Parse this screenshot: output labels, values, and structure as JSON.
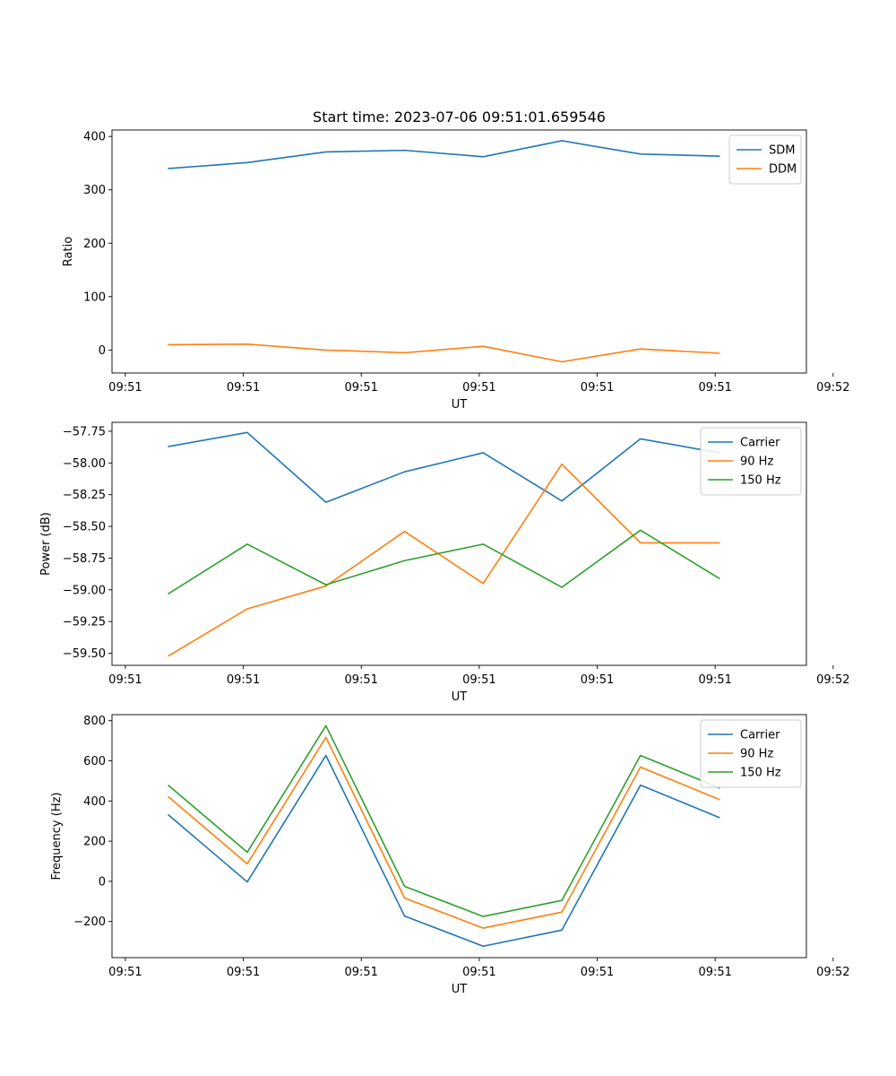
{
  "figure": {
    "title": "Start time: 2023-07-06 09:51:01.659546"
  },
  "chart_data": [
    {
      "type": "line",
      "title": "Start time: 2023-07-06 09:51:01.659546",
      "xlabel": "UT",
      "ylabel": "Ratio",
      "x": [
        1,
        2,
        3,
        4,
        5,
        6,
        7,
        8
      ],
      "xlim": [
        0.28,
        9.11
      ],
      "ylim": [
        -43,
        412
      ],
      "xticks": [
        0.45,
        1.95,
        3.45,
        4.95,
        6.45,
        7.95,
        9.45
      ],
      "xtick_labels": [
        "09:51",
        "09:51",
        "09:51",
        "09:51",
        "09:51",
        "09:51",
        "09:52"
      ],
      "yticks": [
        0,
        100,
        200,
        300,
        400
      ],
      "ytick_labels": [
        "0",
        "100",
        "200",
        "300",
        "400"
      ],
      "legend_position": "top-right",
      "series": [
        {
          "name": "SDM",
          "color": "#1f77b4",
          "values": [
            340,
            351,
            371,
            374,
            362,
            392,
            367,
            363
          ]
        },
        {
          "name": "DDM",
          "color": "#ff7f0e",
          "values": [
            10,
            11,
            0,
            -5,
            7,
            -22,
            2,
            -6
          ]
        }
      ]
    },
    {
      "type": "line",
      "title": "",
      "xlabel": "UT",
      "ylabel": "Power (dB)",
      "x": [
        1,
        2,
        3,
        4,
        5,
        6,
        7,
        8
      ],
      "xlim": [
        0.28,
        9.11
      ],
      "ylim": [
        -59.595,
        -57.68
      ],
      "xticks": [
        0.45,
        1.95,
        3.45,
        4.95,
        6.45,
        7.95,
        9.45
      ],
      "xtick_labels": [
        "09:51",
        "09:51",
        "09:51",
        "09:51",
        "09:51",
        "09:51",
        "09:52"
      ],
      "yticks": [
        -57.75,
        -58.0,
        -58.25,
        -58.5,
        -58.75,
        -59.0,
        -59.25,
        -59.5
      ],
      "ytick_labels": [
        "−57.75",
        "−58.00",
        "−58.25",
        "−58.50",
        "−58.75",
        "−59.00",
        "−59.25",
        "−59.50"
      ],
      "legend_position": "top-right",
      "series": [
        {
          "name": "Carrier",
          "color": "#1f77b4",
          "values": [
            -57.87,
            -57.76,
            -58.31,
            -58.07,
            -57.92,
            -58.3,
            -57.81,
            -57.92
          ]
        },
        {
          "name": "90 Hz",
          "color": "#ff7f0e",
          "values": [
            -59.52,
            -59.15,
            -58.97,
            -58.54,
            -58.95,
            -58.01,
            -58.63,
            -58.63
          ]
        },
        {
          "name": "150 Hz",
          "color": "#2ca02c",
          "values": [
            -59.03,
            -58.64,
            -58.96,
            -58.77,
            -58.64,
            -58.98,
            -58.53,
            -58.91
          ]
        }
      ]
    },
    {
      "type": "line",
      "title": "",
      "xlabel": "UT",
      "ylabel": "Frequency (Hz)",
      "x": [
        1,
        2,
        3,
        4,
        5,
        6,
        7,
        8
      ],
      "xlim": [
        0.28,
        9.11
      ],
      "ylim": [
        -380,
        830
      ],
      "xticks": [
        0.45,
        1.95,
        3.45,
        4.95,
        6.45,
        7.95,
        9.45
      ],
      "xtick_labels": [
        "09:51",
        "09:51",
        "09:51",
        "09:51",
        "09:51",
        "09:51",
        "09:52"
      ],
      "yticks": [
        -200,
        0,
        200,
        400,
        600,
        800
      ],
      "ytick_labels": [
        "−200",
        "0",
        "200",
        "400",
        "600",
        "800"
      ],
      "legend_position": "top-right",
      "series": [
        {
          "name": "Carrier",
          "color": "#1f77b4",
          "values": [
            330,
            -3,
            627,
            -173,
            -323,
            -243,
            479,
            318
          ]
        },
        {
          "name": "90 Hz",
          "color": "#ff7f0e",
          "values": [
            420,
            87,
            717,
            -83,
            -233,
            -153,
            569,
            408
          ]
        },
        {
          "name": "150 Hz",
          "color": "#2ca02c",
          "values": [
            477,
            145,
            775,
            -25,
            -175,
            -95,
            627,
            466
          ]
        }
      ]
    }
  ]
}
